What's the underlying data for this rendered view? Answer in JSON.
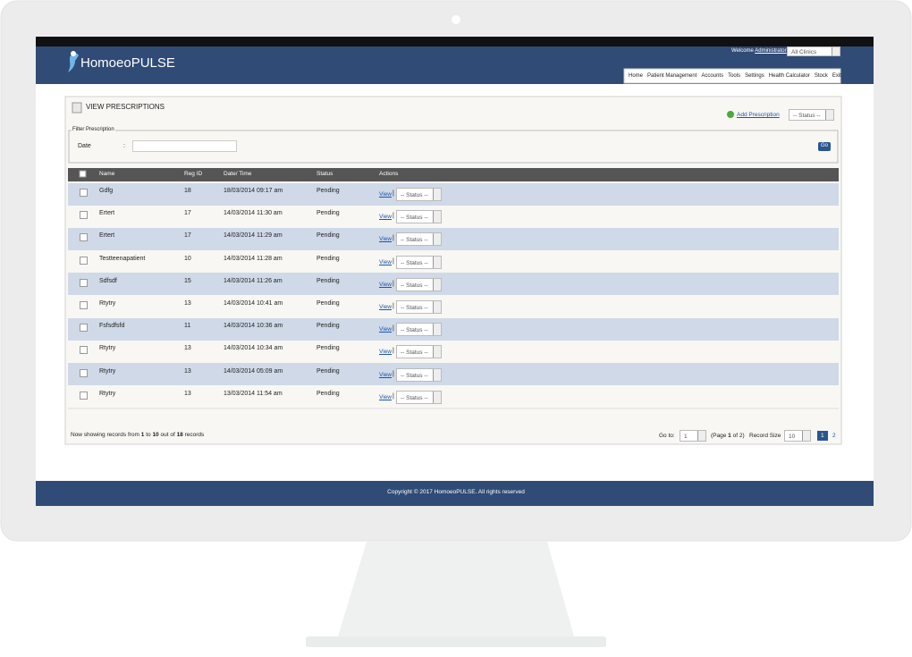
{
  "header": {
    "logo": "HomoeoPULSE",
    "welcome": "Welcome",
    "user": "Administrator",
    "separator": "|",
    "clinic": "All Clinics",
    "nav": [
      "Home",
      "Patient Management",
      "Accounts",
      "Tools",
      "Settings",
      "Health Calculator",
      "Stock",
      "Exit"
    ]
  },
  "page": {
    "title": "VIEW PRESCRIPTIONS",
    "add_link": "Add Prescription",
    "status_filter": "-- Status --"
  },
  "filter": {
    "legend": "Filter Prescription",
    "label": "Date",
    "colon": ":",
    "button": "Go"
  },
  "table": {
    "columns": [
      "Name",
      "Reg ID",
      "Date/ Time",
      "Status",
      "Actions"
    ],
    "rows": [
      [
        "Gdfg",
        18,
        "18/03/2014 09:17 am",
        "Pending"
      ],
      [
        "Ertert",
        17,
        "14/03/2014 11:30 am",
        "Pending"
      ],
      [
        "Ertert",
        17,
        "14/03/2014 11:29 am",
        "Pending"
      ],
      [
        "Testteenapatient",
        10,
        "14/03/2014 11:28 am",
        "Pending"
      ],
      [
        "Sdfsdf",
        15,
        "14/03/2014 11:26 am",
        "Pending"
      ],
      [
        "Rtytry",
        13,
        "14/03/2014 10:41 am",
        "Pending"
      ],
      [
        "Fsfsdfsfd",
        11,
        "14/03/2014 10:36 am",
        "Pending"
      ],
      [
        "Rtytry",
        13,
        "14/03/2014 10:34 am",
        "Pending"
      ],
      [
        "Rtytry",
        13,
        "14/03/2014 05:09 am",
        "Pending"
      ],
      [
        "Rtytry",
        13,
        "13/03/2014 11:54 am",
        "Pending"
      ]
    ],
    "action_link": "View",
    "action_sep": "|",
    "action_status": "-- Status --"
  },
  "summary": {
    "prefix": "Now showing records from",
    "from": 1,
    "to_word": "to",
    "to": 10,
    "out_of": "out of",
    "total": 18,
    "suffix": "records"
  },
  "pagination": {
    "goto": "Go to:",
    "page": 1,
    "page_prefix": "(Page",
    "page_current": 1,
    "page_suffix": "of 2)",
    "record_size_label": "Record Size",
    "record_size": 10,
    "pages": [
      1,
      2
    ]
  },
  "footer": {
    "copyright": "Copyright © 2017 HomoeoPULSE. All rights reserved"
  }
}
